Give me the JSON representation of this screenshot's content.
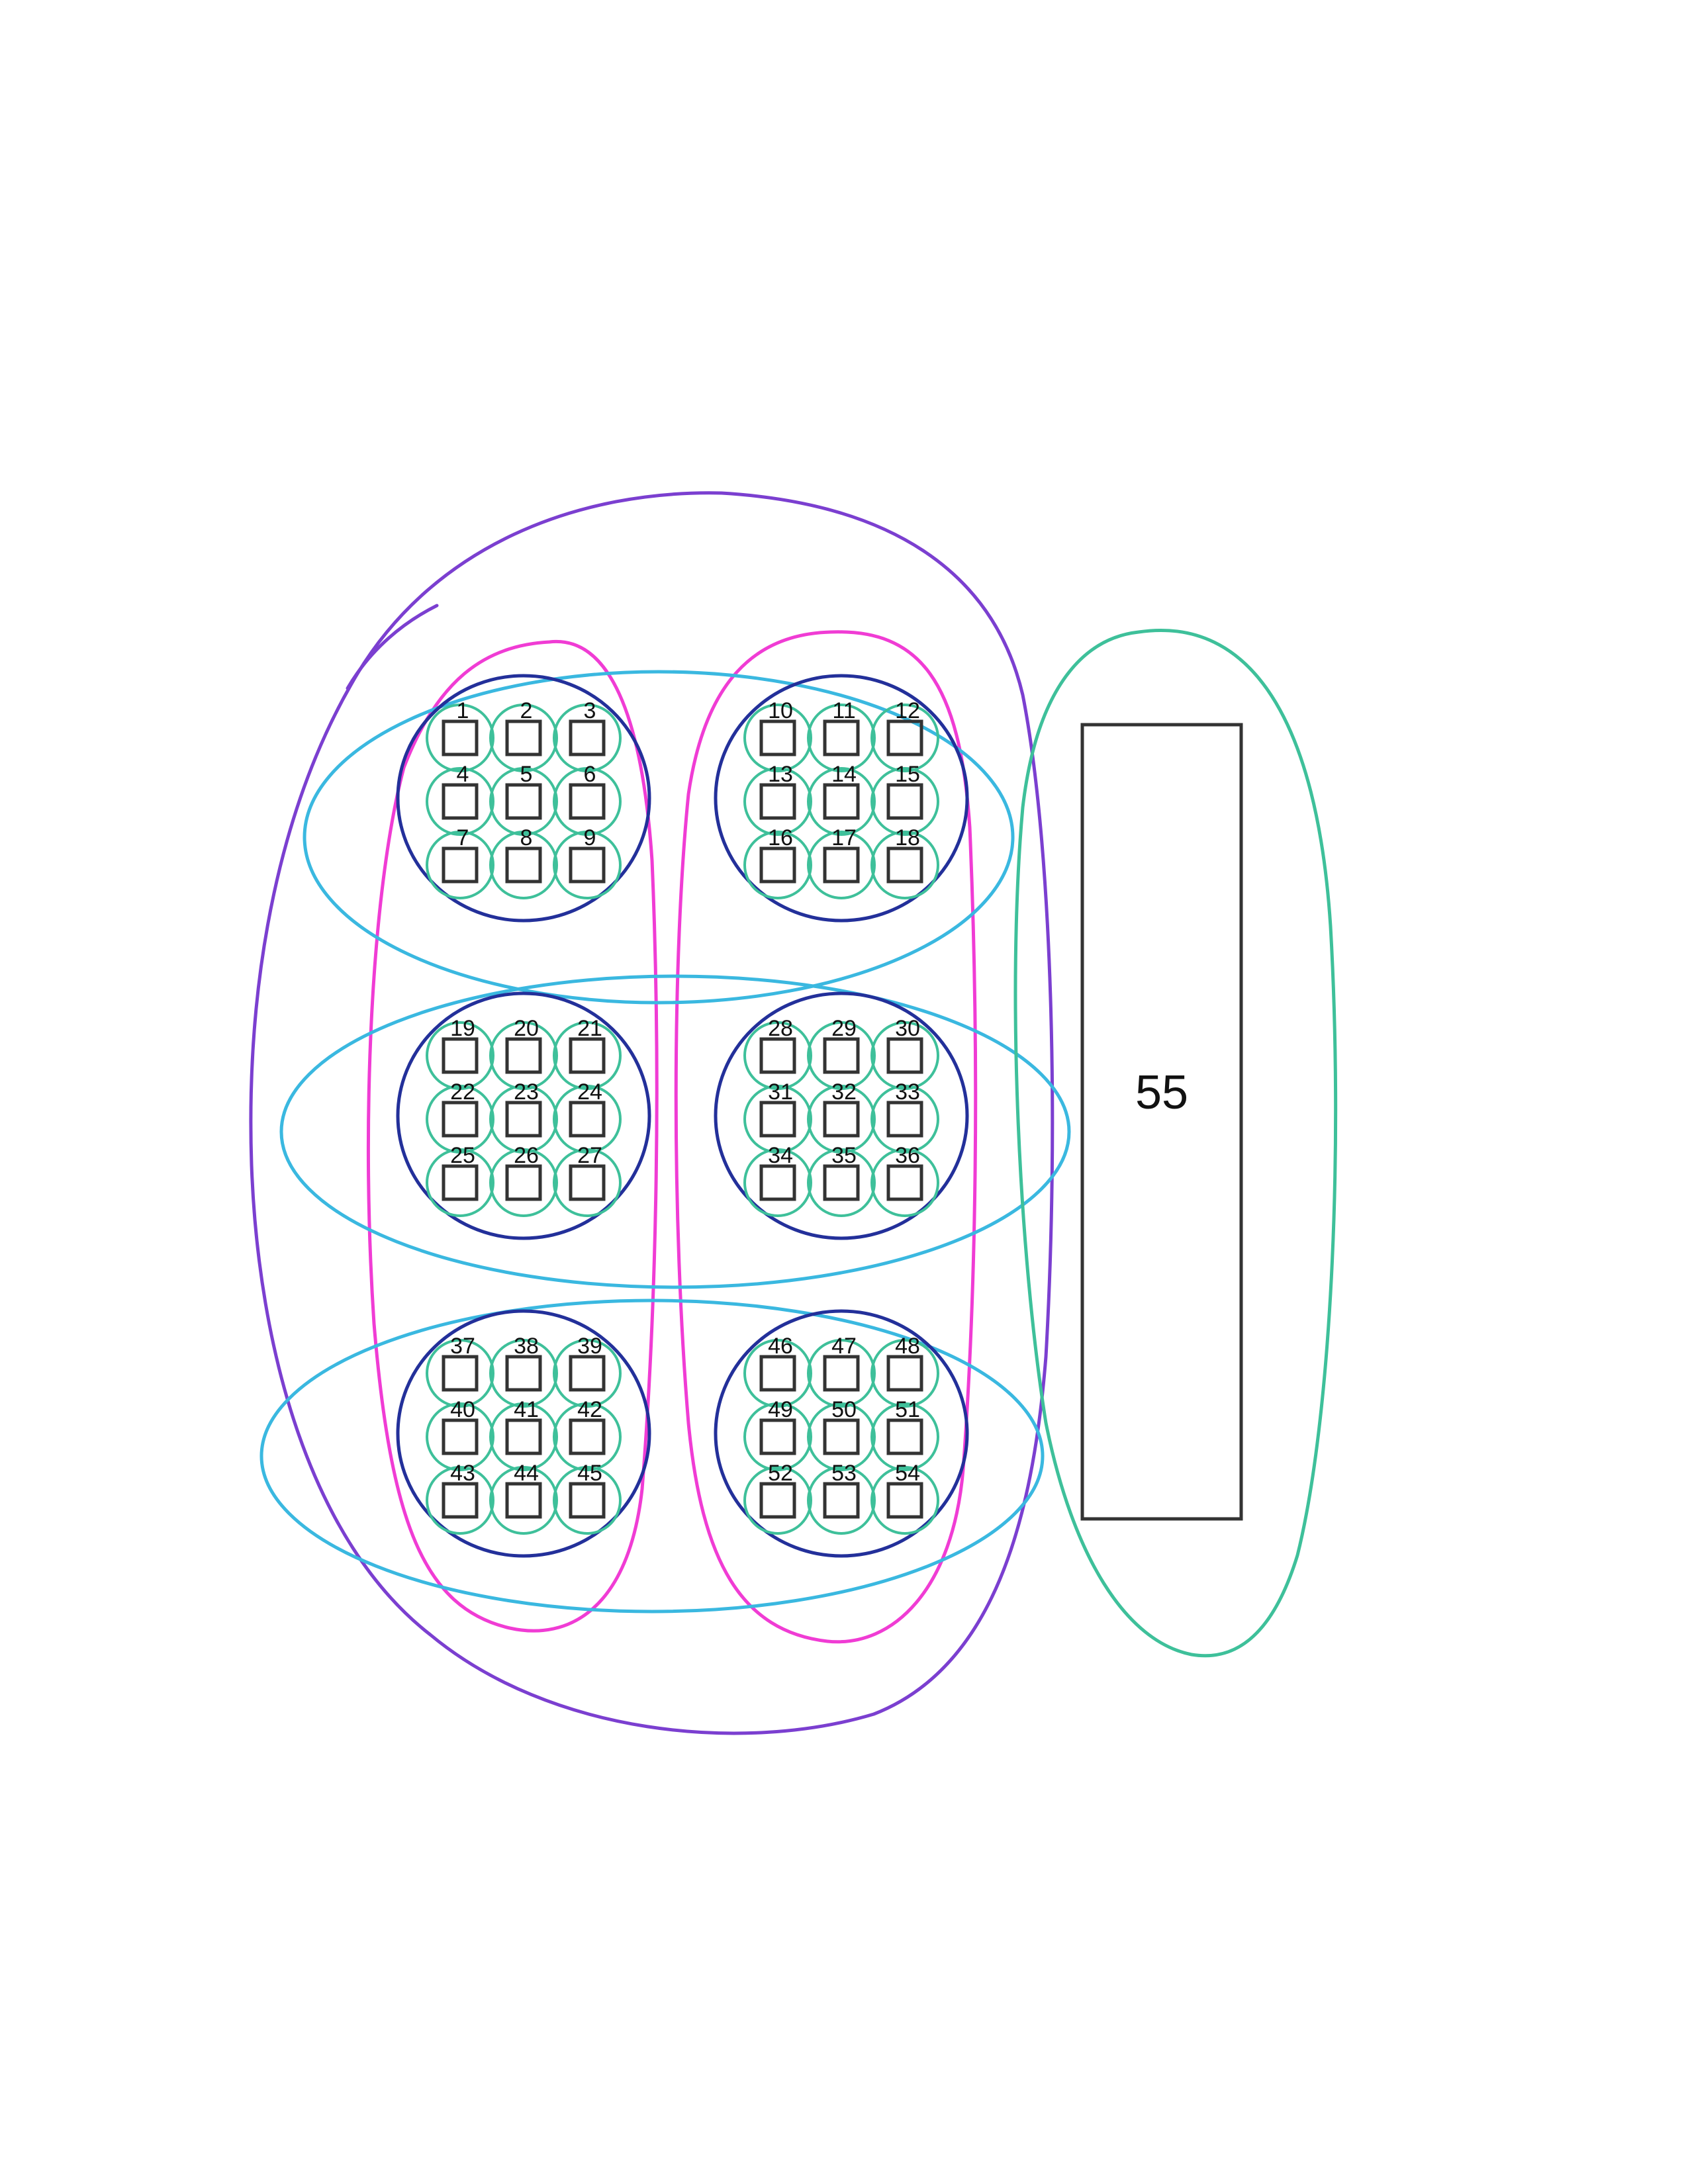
{
  "panel": {
    "label": "55"
  },
  "groups": [
    {
      "id": "top-left",
      "labels": [
        "1",
        "2",
        "3",
        "4",
        "5",
        "6",
        "7",
        "8",
        "9"
      ]
    },
    {
      "id": "top-right",
      "labels": [
        "10",
        "11",
        "12",
        "13",
        "14",
        "15",
        "16",
        "17",
        "18"
      ]
    },
    {
      "id": "middle-left",
      "labels": [
        "19",
        "20",
        "21",
        "22",
        "23",
        "24",
        "25",
        "26",
        "27"
      ]
    },
    {
      "id": "middle-right",
      "labels": [
        "28",
        "29",
        "30",
        "31",
        "32",
        "33",
        "34",
        "35",
        "36"
      ]
    },
    {
      "id": "bottom-left",
      "labels": [
        "37",
        "38",
        "39",
        "40",
        "41",
        "42",
        "43",
        "44",
        "45"
      ]
    },
    {
      "id": "bottom-right",
      "labels": [
        "46",
        "47",
        "48",
        "49",
        "50",
        "51",
        "52",
        "53",
        "54"
      ]
    }
  ],
  "colors": {
    "purple": "#7b3fd0",
    "magenta": "#f03cd4",
    "light-blue": "#3ab8e0",
    "dark-blue": "#23309a",
    "green": "#3ec09a",
    "box": "#333333",
    "text": "#111111"
  }
}
